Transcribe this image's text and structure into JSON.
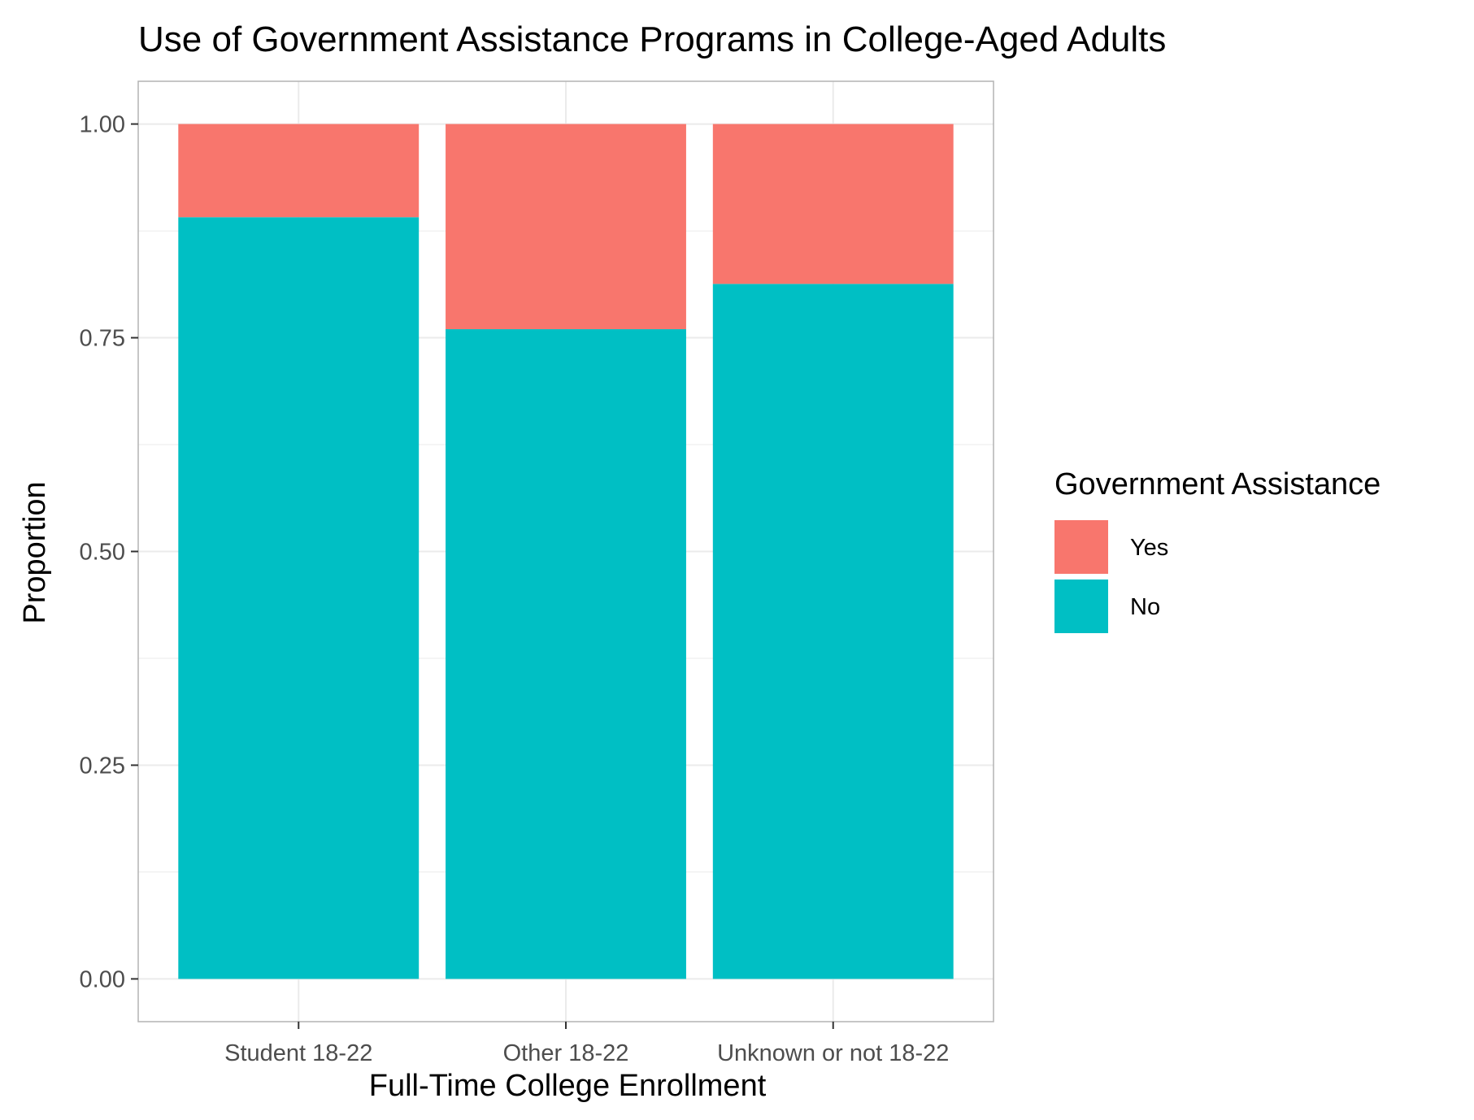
{
  "chart_data": {
    "type": "bar",
    "stacked": true,
    "title": "Use of Government Assistance Programs in College-Aged Adults",
    "xlabel": "Full-Time College Enrollment",
    "ylabel": "Proportion",
    "categories": [
      "Student 18-22",
      "Other 18-22",
      "Unknown or not 18-22"
    ],
    "series": [
      {
        "name": "No",
        "color": "#00BFC4",
        "values": [
          0.891,
          0.76,
          0.813
        ]
      },
      {
        "name": "Yes",
        "color": "#F8766D",
        "values": [
          0.109,
          0.24,
          0.187
        ]
      }
    ],
    "ylim": [
      -0.05,
      1.05
    ],
    "yticks": [
      0.0,
      0.25,
      0.5,
      0.75,
      1.0
    ],
    "ytick_labels": [
      "0.00",
      "0.25",
      "0.50",
      "0.75",
      "1.00"
    ],
    "grid": true,
    "legend": {
      "title": "Government Assistance",
      "position": "right",
      "entries": [
        {
          "name": "Yes",
          "color": "#F8766D"
        },
        {
          "name": "No",
          "color": "#00BFC4"
        }
      ]
    },
    "panel_border_color": "#b3b3b3",
    "grid_color": "#ebebeb"
  }
}
